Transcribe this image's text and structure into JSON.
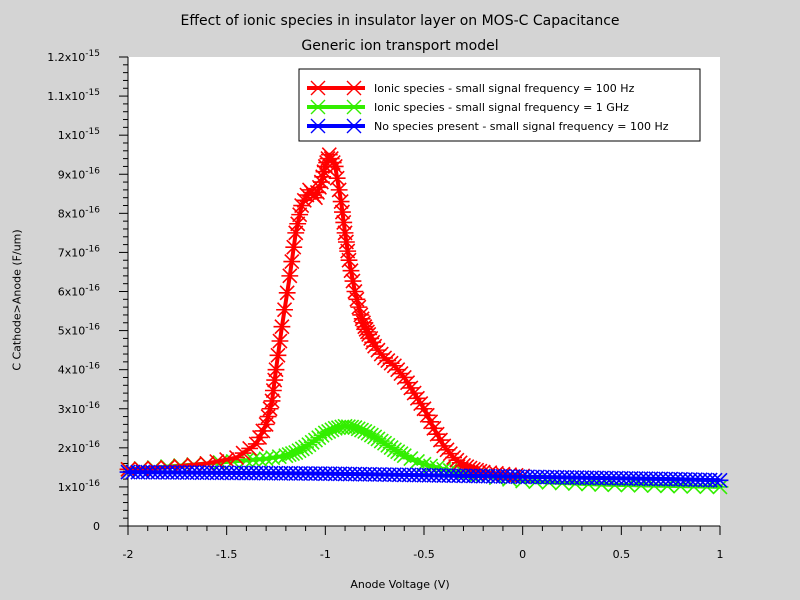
{
  "chart_data": {
    "type": "line",
    "title": "Effect of ionic species in insulator layer on MOS-C Capacitance",
    "subtitle": "Generic ion transport model",
    "xlabel": "Anode Voltage (V)",
    "ylabel": "C Cathode>Anode (F/um)",
    "xlim": [
      -2,
      1
    ],
    "ylim": [
      0,
      1.2e-15
    ],
    "x_ticks": [
      -2,
      -1.5,
      -1,
      -0.5,
      0,
      0.5,
      1
    ],
    "x_tick_labels": [
      "-2",
      "-1.5",
      "-1",
      "-0.5",
      "0",
      "0.5",
      "1"
    ],
    "y_ticks": [
      0,
      1e-16,
      2e-16,
      3e-16,
      4e-16,
      5e-16,
      6e-16,
      7e-16,
      8e-16,
      9e-16,
      1e-15,
      1.1e-15,
      1.2e-15
    ],
    "y_tick_labels": [
      {
        "mant": "0",
        "exp": ""
      },
      {
        "mant": "1x10",
        "exp": "-16"
      },
      {
        "mant": "2x10",
        "exp": "-16"
      },
      {
        "mant": "3x10",
        "exp": "-16"
      },
      {
        "mant": "4x10",
        "exp": "-16"
      },
      {
        "mant": "5x10",
        "exp": "-16"
      },
      {
        "mant": "6x10",
        "exp": "-16"
      },
      {
        "mant": "7x10",
        "exp": "-16"
      },
      {
        "mant": "8x10",
        "exp": "-16"
      },
      {
        "mant": "9x10",
        "exp": "-16"
      },
      {
        "mant": "1x10",
        "exp": "-15"
      },
      {
        "mant": "1.1x10",
        "exp": "-15"
      },
      {
        "mant": "1.2x10",
        "exp": "-15"
      }
    ],
    "grid": false,
    "legend_position": "top-right",
    "series": [
      {
        "name": "Ionic species - small signal frequency = 100 Hz",
        "color": "#ff0000",
        "marker": "asterisk",
        "x": [
          -2.0,
          -1.8,
          -1.6,
          -1.45,
          -1.35,
          -1.3,
          -1.27,
          -1.25,
          -1.22,
          -1.18,
          -1.15,
          -1.12,
          -1.08,
          -1.05,
          -1.02,
          -1.0,
          -0.98,
          -0.95,
          -0.92,
          -0.9,
          -0.88,
          -0.85,
          -0.82,
          -0.8,
          -0.78,
          -0.75,
          -0.7,
          -0.65,
          -0.6,
          -0.55,
          -0.5,
          -0.45,
          -0.4,
          -0.35,
          -0.3,
          -0.25,
          -0.2,
          -0.1,
          0.0
        ],
        "y": [
          1.45e-16,
          1.5e-16,
          1.6e-16,
          1.75e-16,
          2.1e-16,
          2.6e-16,
          3.2e-16,
          4e-16,
          5.1e-16,
          6.4e-16,
          7.5e-16,
          8.2e-16,
          8.6e-16,
          8.4e-16,
          8.8e-16,
          9.2e-16,
          9.5e-16,
          9.2e-16,
          8.3e-16,
          7.5e-16,
          6.8e-16,
          6e-16,
          5.4e-16,
          5.1e-16,
          4.9e-16,
          4.6e-16,
          4.3e-16,
          4.1e-16,
          3.8e-16,
          3.4e-16,
          3e-16,
          2.5e-16,
          2.05e-16,
          1.75e-16,
          1.55e-16,
          1.45e-16,
          1.38e-16,
          1.33e-16,
          1.28e-16
        ]
      },
      {
        "name": "Ionic species - small signal  frequency = 1 GHz",
        "color": "#33ee00",
        "marker": "asterisk",
        "x": [
          -2.0,
          -1.8,
          -1.6,
          -1.4,
          -1.3,
          -1.2,
          -1.15,
          -1.1,
          -1.05,
          -1.0,
          -0.95,
          -0.9,
          -0.85,
          -0.8,
          -0.75,
          -0.7,
          -0.65,
          -0.6,
          -0.5,
          -0.4,
          -0.3,
          -0.2,
          0.0,
          0.2,
          0.4,
          0.6,
          0.8,
          1.0
        ],
        "y": [
          1.45e-16,
          1.52e-16,
          1.6e-16,
          1.68e-16,
          1.72e-16,
          1.8e-16,
          1.88e-16,
          2.02e-16,
          2.2e-16,
          2.38e-16,
          2.5e-16,
          2.55e-16,
          2.52e-16,
          2.42e-16,
          2.28e-16,
          2.12e-16,
          1.95e-16,
          1.8e-16,
          1.58e-16,
          1.45e-16,
          1.36e-16,
          1.28e-16,
          1.15e-16,
          1.1e-16,
          1.06e-16,
          1.04e-16,
          1.02e-16,
          1e-16
        ]
      },
      {
        "name": "No species present - small signal frequency = 100 Hz",
        "color": "#0000ff",
        "marker": "asterisk",
        "x": [
          -2.0,
          -1.75,
          -1.5,
          -1.25,
          -1.0,
          -0.75,
          -0.5,
          -0.25,
          0.0,
          0.25,
          0.5,
          0.75,
          1.0
        ],
        "y": [
          1.38e-16,
          1.37e-16,
          1.36e-16,
          1.35e-16,
          1.34e-16,
          1.32e-16,
          1.3e-16,
          1.28e-16,
          1.26e-16,
          1.24e-16,
          1.22e-16,
          1.2e-16,
          1.17e-16
        ]
      }
    ]
  }
}
